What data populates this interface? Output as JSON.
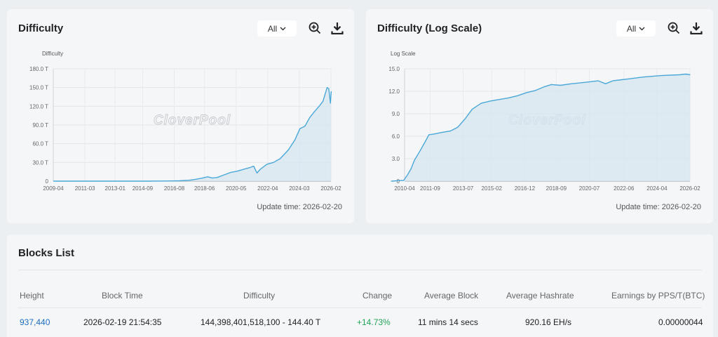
{
  "difficulty_panel": {
    "title": "Difficulty",
    "range": "All",
    "update_time": "Update time: 2026-02-20"
  },
  "log_panel": {
    "title": "Difficulty (Log Scale)",
    "range": "All",
    "update_time": "Update time: 2026-02-20"
  },
  "watermark": "CloverPool",
  "icons": {
    "zoom": "zoom-in-icon",
    "download": "download-icon",
    "chevron": "chevron-down-icon"
  },
  "colors": {
    "line": "#4aa8d8",
    "area": "#d6e6f0",
    "positive": "#23a35a",
    "link": "#1d6fbf"
  },
  "chart_data": [
    {
      "type": "area",
      "ylabel": "Difficulty",
      "y_ticks": [
        "0",
        "30.0 T",
        "60.0 T",
        "90.0 T",
        "120.0 T",
        "150.0 T",
        "180.0 T"
      ],
      "ylim": [
        0,
        180
      ],
      "x_ticks": [
        "2009-04",
        "2011-03",
        "2013-01",
        "2014-09",
        "2016-08",
        "2018-06",
        "2020-05",
        "2022-04",
        "2024-03",
        "2026-02"
      ],
      "grid": true,
      "points": [
        [
          2009.25,
          0
        ],
        [
          2013.0,
          0.01
        ],
        [
          2015.0,
          0.05
        ],
        [
          2016.0,
          0.2
        ],
        [
          2016.9,
          0.6
        ],
        [
          2017.5,
          1.5
        ],
        [
          2017.9,
          3
        ],
        [
          2018.3,
          5
        ],
        [
          2018.6,
          7
        ],
        [
          2018.9,
          5
        ],
        [
          2019.2,
          6
        ],
        [
          2019.6,
          10
        ],
        [
          2020.0,
          14
        ],
        [
          2020.4,
          16
        ],
        [
          2020.8,
          19
        ],
        [
          2021.2,
          22
        ],
        [
          2021.4,
          24
        ],
        [
          2021.6,
          13
        ],
        [
          2021.8,
          19
        ],
        [
          2022.2,
          27
        ],
        [
          2022.6,
          30
        ],
        [
          2023.0,
          36
        ],
        [
          2023.5,
          50
        ],
        [
          2023.9,
          66
        ],
        [
          2024.2,
          84
        ],
        [
          2024.5,
          88
        ],
        [
          2024.8,
          102
        ],
        [
          2025.1,
          112
        ],
        [
          2025.4,
          121
        ],
        [
          2025.6,
          128
        ],
        [
          2025.85,
          150
        ],
        [
          2025.95,
          148
        ],
        [
          2026.05,
          125
        ],
        [
          2026.1,
          144
        ]
      ]
    },
    {
      "type": "area",
      "ylabel": "Log Scale",
      "y_ticks": [
        "0",
        "3.0",
        "6.0",
        "9.0",
        "12.0",
        "15.0"
      ],
      "ylim": [
        0,
        15
      ],
      "x_ticks": [
        "2010-04",
        "2011-09",
        "2013-07",
        "2015-02",
        "2016-12",
        "2018-09",
        "2020-07",
        "2022-06",
        "2024-04",
        "2026-02"
      ],
      "grid": true,
      "points": [
        [
          2009.5,
          0
        ],
        [
          2010.2,
          0.1
        ],
        [
          2010.4,
          0.8
        ],
        [
          2010.6,
          1.6
        ],
        [
          2010.8,
          2.8
        ],
        [
          2011.1,
          4.0
        ],
        [
          2011.4,
          5.3
        ],
        [
          2011.6,
          6.2
        ],
        [
          2011.9,
          6.3
        ],
        [
          2012.3,
          6.5
        ],
        [
          2012.8,
          6.7
        ],
        [
          2013.2,
          7.2
        ],
        [
          2013.6,
          8.3
        ],
        [
          2014.0,
          9.6
        ],
        [
          2014.5,
          10.4
        ],
        [
          2015.0,
          10.7
        ],
        [
          2015.5,
          10.9
        ],
        [
          2016.0,
          11.1
        ],
        [
          2016.5,
          11.4
        ],
        [
          2017.0,
          11.8
        ],
        [
          2017.5,
          12.1
        ],
        [
          2018.0,
          12.6
        ],
        [
          2018.4,
          12.9
        ],
        [
          2018.9,
          12.8
        ],
        [
          2019.5,
          13.0
        ],
        [
          2020.3,
          13.2
        ],
        [
          2021.0,
          13.4
        ],
        [
          2021.4,
          13.0
        ],
        [
          2021.8,
          13.4
        ],
        [
          2022.5,
          13.6
        ],
        [
          2023.5,
          13.9
        ],
        [
          2024.5,
          14.1
        ],
        [
          2025.5,
          14.2
        ],
        [
          2025.85,
          14.3
        ],
        [
          2026.1,
          14.2
        ]
      ]
    }
  ],
  "blocks": {
    "title": "Blocks List",
    "headers": [
      "Height",
      "Block Time",
      "Difficulty",
      "Change",
      "Average Block",
      "Average Hashrate",
      "Earnings by PPS/T(BTC)"
    ],
    "rows": [
      [
        "937,440",
        "2026-02-19 21:54:35",
        "144,398,401,518,100 - 144.40 T",
        "+14.73%",
        "11 mins 14 secs",
        "920.16 EH/s",
        "0.00000044"
      ]
    ]
  }
}
